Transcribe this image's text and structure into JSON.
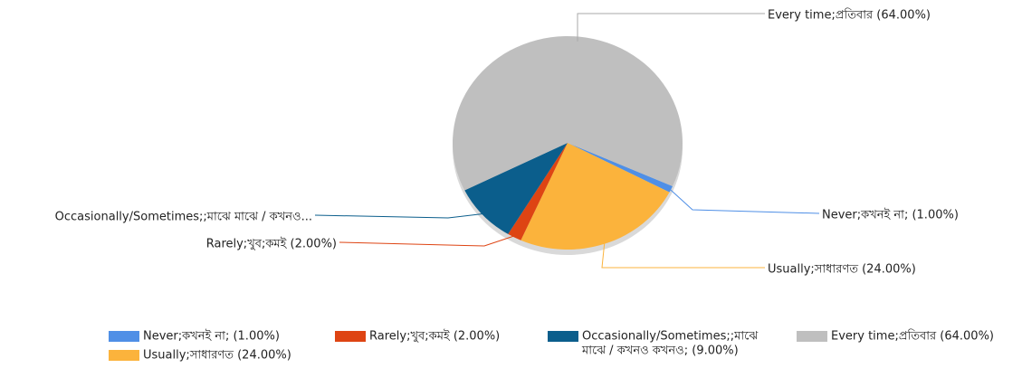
{
  "chart_data": {
    "type": "pie",
    "categories": [
      "Never;কখনই না;",
      "Usually;সাধারণত",
      "Rarely;খুব;কমই",
      "Occasionally/Sometimes;;মাঝে মাঝে / কখনও কখনও;",
      "Every time;প্রতিবার"
    ],
    "values": [
      1,
      24,
      2,
      9,
      64
    ],
    "labels": [
      "Never;কখনই না; (1.00%)",
      "Usually;সাধারণত (24.00%)",
      "Rarely;খুব;কমই (2.00%)",
      "Occasionally/Sometimes;;মাঝে মাঝে / কখনও...",
      "Every time;প্রতিবার (64.00%)"
    ],
    "legend_labels": [
      "Never;কখনই না; (1.00%)",
      "Usually;সাধারণত (24.00%)",
      "Rarely;খুব;কমই (2.00%)",
      [
        "Occasionally/Sometimes;;মাঝে",
        "মাঝে / কখনও কখনও; (9.00%)"
      ],
      "Every time;প্রতিবার (64.00%)"
    ],
    "colors": [
      "#4f8fe6",
      "#fbb33c",
      "#de4413",
      "#0b5e8c",
      "#bfbfbf"
    ]
  }
}
